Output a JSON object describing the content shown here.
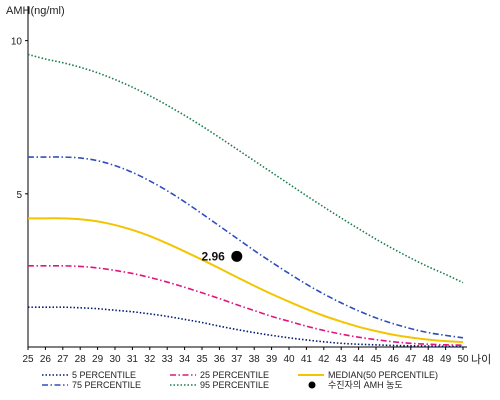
{
  "chart_data": {
    "type": "line",
    "title": "",
    "ylabel": "AMH(ng/ml)",
    "xlabel": "나이",
    "x": [
      25,
      26,
      27,
      28,
      29,
      30,
      31,
      32,
      33,
      34,
      35,
      36,
      37,
      38,
      39,
      40,
      41,
      42,
      43,
      44,
      45,
      46,
      47,
      48,
      49,
      50
    ],
    "xlim": [
      25,
      50
    ],
    "ylim": [
      0,
      11
    ],
    "yticks": [
      5,
      10
    ],
    "grid": false,
    "legend_position": "bottom",
    "series": [
      {
        "name": "5 PERCENTILE",
        "color": "#001a70",
        "style": "dotted",
        "values": [
          1.3,
          1.3,
          1.3,
          1.28,
          1.25,
          1.2,
          1.15,
          1.08,
          1.0,
          0.9,
          0.8,
          0.68,
          0.57,
          0.47,
          0.38,
          0.3,
          0.23,
          0.17,
          0.12,
          0.09,
          0.07,
          0.05,
          0.04,
          0.03,
          0.02,
          0.02
        ]
      },
      {
        "name": "25 PERCENTILE",
        "color": "#e0167f",
        "style": "dashdot",
        "values": [
          2.65,
          2.65,
          2.65,
          2.63,
          2.58,
          2.5,
          2.4,
          2.27,
          2.12,
          1.95,
          1.77,
          1.58,
          1.38,
          1.19,
          1.0,
          0.84,
          0.68,
          0.54,
          0.42,
          0.32,
          0.24,
          0.17,
          0.12,
          0.09,
          0.07,
          0.06
        ]
      },
      {
        "name": "MEDIAN(50 PERCENTILE)",
        "color": "#f2c500",
        "style": "solid",
        "values": [
          4.2,
          4.2,
          4.2,
          4.17,
          4.1,
          3.98,
          3.82,
          3.62,
          3.38,
          3.12,
          2.85,
          2.57,
          2.28,
          2.0,
          1.73,
          1.48,
          1.24,
          1.02,
          0.83,
          0.66,
          0.52,
          0.4,
          0.31,
          0.24,
          0.19,
          0.16
        ]
      },
      {
        "name": "75 PERCENTILE",
        "color": "#2e4fbf",
        "style": "dashdot",
        "values": [
          6.2,
          6.2,
          6.2,
          6.17,
          6.08,
          5.92,
          5.7,
          5.42,
          5.1,
          4.74,
          4.35,
          3.95,
          3.55,
          3.15,
          2.77,
          2.4,
          2.05,
          1.73,
          1.44,
          1.18,
          0.95,
          0.76,
          0.6,
          0.47,
          0.38,
          0.3
        ]
      },
      {
        "name": "95 PERCENTILE",
        "color": "#1a7a4a",
        "style": "dotted",
        "values": [
          9.55,
          9.4,
          9.28,
          9.13,
          8.95,
          8.73,
          8.48,
          8.2,
          7.89,
          7.56,
          7.21,
          6.84,
          6.46,
          6.08,
          5.7,
          5.32,
          4.94,
          4.57,
          4.21,
          3.86,
          3.52,
          3.2,
          2.9,
          2.62,
          2.37,
          2.1
        ]
      }
    ],
    "point": {
      "x": 37,
      "y": 2.96,
      "label": "2.96",
      "legend": "수진자의 AMH 농도",
      "color": "#000000"
    }
  }
}
